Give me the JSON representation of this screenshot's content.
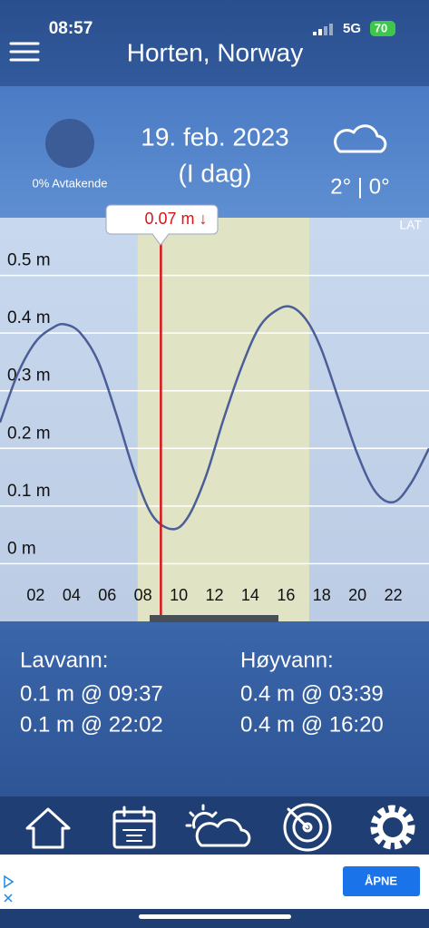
{
  "status_bar": {
    "time": "08:57",
    "network": "5G",
    "battery": "70"
  },
  "header": {
    "title": "Horten, Norway"
  },
  "summary": {
    "moon": "0% Avtakende",
    "date": "19. feb. 2023",
    "day": "(I dag)",
    "temperature": "2° | 0°"
  },
  "chart_data": {
    "type": "line",
    "datum": "LAT",
    "x": [
      0,
      1,
      2,
      3,
      3.65,
      4.5,
      5.5,
      6.5,
      7.5,
      8.5,
      9.62,
      10.5,
      11.5,
      12.5,
      13.5,
      14.5,
      15.5,
      16.33,
      17.2,
      18,
      19,
      20,
      21,
      22.03,
      23,
      24
    ],
    "values": [
      0.245,
      0.33,
      0.385,
      0.41,
      0.415,
      0.4,
      0.35,
      0.26,
      0.16,
      0.085,
      0.06,
      0.08,
      0.15,
      0.25,
      0.34,
      0.41,
      0.44,
      0.445,
      0.42,
      0.37,
      0.28,
      0.19,
      0.125,
      0.107,
      0.14,
      0.2
    ],
    "color": "#4b5e98",
    "xlim": [
      0,
      24
    ],
    "ylim": [
      -0.1,
      0.6
    ],
    "xticks": [
      {
        "value": 2,
        "label": "02"
      },
      {
        "value": 4,
        "label": "04"
      },
      {
        "value": 6,
        "label": "06"
      },
      {
        "value": 8,
        "label": "08"
      },
      10,
      12,
      14,
      16,
      18,
      20,
      22
    ],
    "yticks": [
      {
        "value": 0,
        "label": "0 m"
      },
      {
        "value": 0.1,
        "label": "0.1 m"
      },
      {
        "value": 0.2,
        "label": "0.2 m"
      },
      {
        "value": 0.3,
        "label": "0.3 m"
      },
      {
        "value": 0.4,
        "label": "0.4 m"
      },
      {
        "value": 0.5,
        "label": "0.5 m"
      }
    ],
    "grid": true,
    "daylight": [
      7.7,
      17.3
    ],
    "marker": {
      "x": 9,
      "value": 0.07,
      "label": "0.07 m ↓",
      "color": "#d9151b"
    }
  },
  "tides": {
    "low": {
      "label": "Lavvann:",
      "entries": [
        "0.1 m @ 09:37",
        "0.1 m @ 22:02"
      ]
    },
    "high": {
      "label": "Høyvann:",
      "entries": [
        "0.4 m @ 03:39",
        "0.4 m @ 16:20"
      ]
    }
  },
  "ad": {
    "button": "ÅPNE"
  }
}
